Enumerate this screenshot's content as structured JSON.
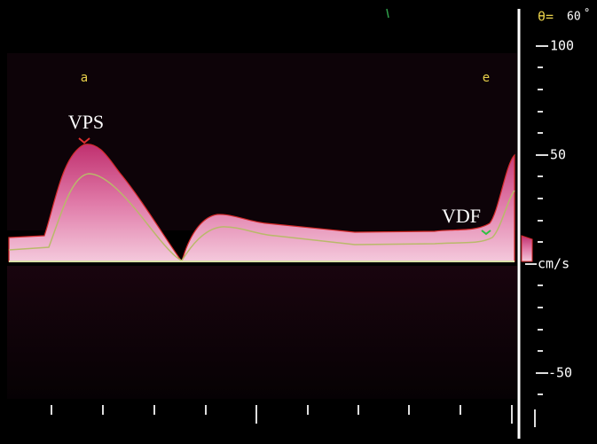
{
  "angle": {
    "symbol": "θ=",
    "value": "60",
    "unit": "°"
  },
  "cycle_labels": [
    "a",
    "e"
  ],
  "annotations": [
    "VPS",
    "VDF"
  ],
  "scale": {
    "ticks": [
      "100",
      "50",
      "-50"
    ],
    "unit": "cm/s"
  }
}
